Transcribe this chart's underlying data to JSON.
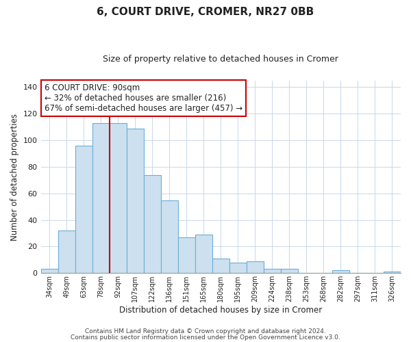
{
  "title": "6, COURT DRIVE, CROMER, NR27 0BB",
  "subtitle": "Size of property relative to detached houses in Cromer",
  "xlabel": "Distribution of detached houses by size in Cromer",
  "ylabel": "Number of detached properties",
  "bar_labels": [
    "34sqm",
    "49sqm",
    "63sqm",
    "78sqm",
    "92sqm",
    "107sqm",
    "122sqm",
    "136sqm",
    "151sqm",
    "165sqm",
    "180sqm",
    "195sqm",
    "209sqm",
    "224sqm",
    "238sqm",
    "253sqm",
    "268sqm",
    "282sqm",
    "297sqm",
    "311sqm",
    "326sqm"
  ],
  "bar_values": [
    3,
    32,
    96,
    113,
    113,
    109,
    74,
    55,
    27,
    29,
    11,
    8,
    9,
    3,
    3,
    0,
    0,
    2,
    0,
    0,
    1
  ],
  "bar_color": "#cce0f0",
  "bar_edge_color": "#6aaed6",
  "vline_color": "#cc0000",
  "annotation_title": "6 COURT DRIVE: 90sqm",
  "annotation_line1": "← 32% of detached houses are smaller (216)",
  "annotation_line2": "67% of semi-detached houses are larger (457) →",
  "annotation_box_color": "#ffffff",
  "annotation_box_edge": "#cc0000",
  "ylim": [
    0,
    145
  ],
  "yticks": [
    0,
    20,
    40,
    60,
    80,
    100,
    120,
    140
  ],
  "footer1": "Contains HM Land Registry data © Crown copyright and database right 2024.",
  "footer2": "Contains public sector information licensed under the Open Government Licence v3.0."
}
